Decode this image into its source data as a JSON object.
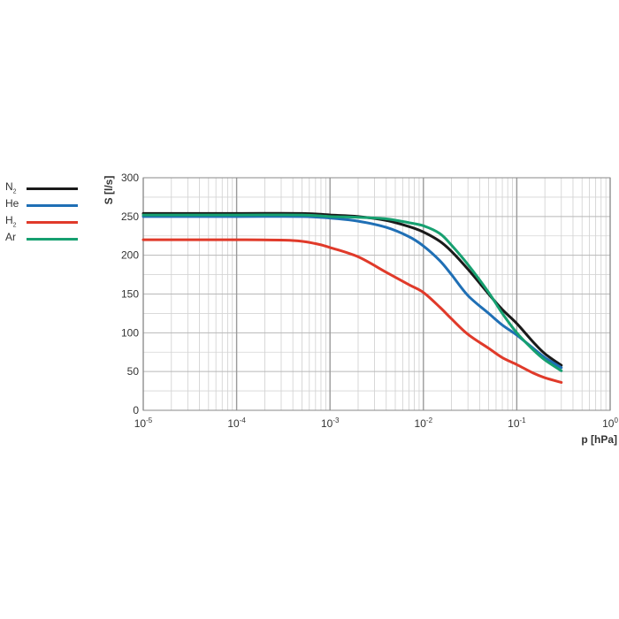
{
  "chart_data": {
    "type": "line",
    "xscale": "log",
    "xlim": [
      1e-05,
      1
    ],
    "ylim": [
      0,
      300
    ],
    "grid": true,
    "legend_position": "left",
    "xlabel": "p [hPa]",
    "ylabel": "S [l/s]",
    "x_ticks": [
      {
        "base": "10",
        "exp": "-5"
      },
      {
        "base": "10",
        "exp": "-4"
      },
      {
        "base": "10",
        "exp": "-3"
      },
      {
        "base": "10",
        "exp": "-2"
      },
      {
        "base": "10",
        "exp": "-1"
      },
      {
        "base": "10",
        "exp": "0"
      }
    ],
    "y_ticks": [
      "0",
      "50",
      "100",
      "150",
      "200",
      "250",
      "300"
    ],
    "series": [
      {
        "name": "N",
        "name_sub": "2",
        "color": "#1a1a1a",
        "x": [
          1e-05,
          0.0001,
          0.0005,
          0.001,
          0.002,
          0.004,
          0.007,
          0.01,
          0.015,
          0.02,
          0.03,
          0.05,
          0.07,
          0.1,
          0.15,
          0.2,
          0.3
        ],
        "y": [
          254,
          254,
          254,
          252,
          250,
          245,
          237,
          230,
          218,
          205,
          182,
          150,
          130,
          112,
          88,
          73,
          58
        ]
      },
      {
        "name": "He",
        "name_sub": "",
        "color": "#1f6fb5",
        "x": [
          1e-05,
          0.0001,
          0.0005,
          0.001,
          0.002,
          0.004,
          0.007,
          0.01,
          0.015,
          0.02,
          0.03,
          0.05,
          0.07,
          0.1,
          0.15,
          0.2,
          0.3
        ],
        "y": [
          250,
          250,
          250,
          248,
          244,
          236,
          224,
          212,
          193,
          175,
          148,
          125,
          110,
          97,
          80,
          68,
          55
        ]
      },
      {
        "name": "H",
        "name_sub": "2",
        "color": "#e03a2a",
        "x": [
          1e-05,
          0.0001,
          0.0004,
          0.0007,
          0.001,
          0.002,
          0.004,
          0.007,
          0.01,
          0.015,
          0.02,
          0.03,
          0.05,
          0.07,
          0.1,
          0.15,
          0.2,
          0.3
        ],
        "y": [
          220,
          220,
          219,
          215,
          210,
          198,
          178,
          162,
          152,
          133,
          118,
          98,
          80,
          68,
          59,
          48,
          42,
          36
        ]
      },
      {
        "name": "Ar",
        "name_sub": "",
        "color": "#16a070",
        "x": [
          1e-05,
          0.0001,
          0.0005,
          0.001,
          0.002,
          0.004,
          0.007,
          0.01,
          0.015,
          0.02,
          0.03,
          0.05,
          0.07,
          0.1,
          0.15,
          0.2,
          0.3
        ],
        "y": [
          252,
          252,
          252,
          250,
          249,
          247,
          242,
          238,
          228,
          213,
          188,
          152,
          125,
          100,
          78,
          65,
          51
        ]
      }
    ]
  }
}
